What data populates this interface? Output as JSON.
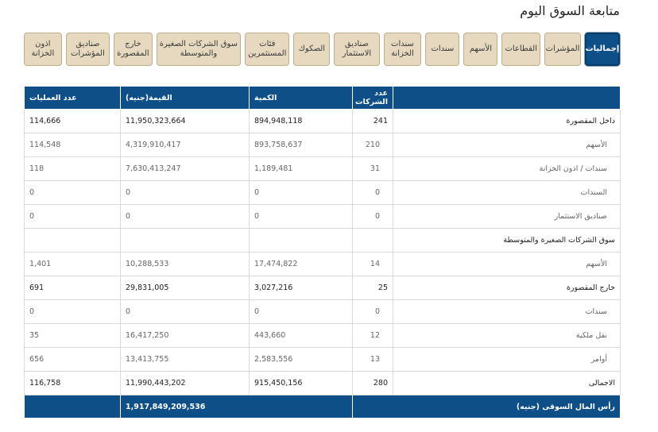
{
  "page_title": "متابعة السوق اليوم",
  "tabs": [
    {
      "label": "إجماليات",
      "active": true
    },
    {
      "label": "المؤشرات"
    },
    {
      "label": "القطاعات"
    },
    {
      "label": "الأسهم"
    },
    {
      "label": "سندات"
    },
    {
      "label": "سندات الخزانة"
    },
    {
      "label": "صناديق الاستثمار"
    },
    {
      "label": "الصكوك"
    },
    {
      "label": "فئات المستثمرين"
    },
    {
      "label": "سوق الشركات الصغيرة والمتوسطة"
    },
    {
      "label": "خارج المقصورة"
    },
    {
      "label": "صناديق المؤشرات"
    },
    {
      "label": "اذون الخزانة"
    }
  ],
  "table": {
    "headers": {
      "name": "",
      "companies": "عدد الشركات",
      "quantity": "الكمية",
      "value": "القيمة(جنيه)",
      "trades": "عدد العمليات"
    },
    "rows": [
      {
        "name": "داخل المقصورة",
        "companies": "241",
        "quantity": "894,948,118",
        "value": "11,950,323,664",
        "trades": "114,666"
      },
      {
        "name": "الأسهم",
        "companies": "210",
        "quantity": "893,758,637",
        "value": "4,319,910,417",
        "trades": "114,548"
      },
      {
        "name": "سندات / اذون الخزانة",
        "companies": "31",
        "quantity": "1,189,481",
        "value": "7,630,413,247",
        "trades": "118"
      },
      {
        "name": "السندات",
        "companies": "0",
        "quantity": "0",
        "value": "0",
        "trades": "0"
      },
      {
        "name": "صناديق الاستثمار",
        "companies": "0",
        "quantity": "0",
        "value": "0",
        "trades": "0"
      },
      {
        "name": "سوق الشركات الصغيرة والمتوسطة",
        "companies": "",
        "quantity": "",
        "value": "",
        "trades": ""
      },
      {
        "name": "الأسهم",
        "companies": "14",
        "quantity": "17,474,822",
        "value": "10,288,533",
        "trades": "1,401"
      },
      {
        "name": "خارج المقصورة",
        "companies": "25",
        "quantity": "3,027,216",
        "value": "29,831,005",
        "trades": "691"
      },
      {
        "name": "سندات",
        "companies": "0",
        "quantity": "0",
        "value": "0",
        "trades": "0"
      },
      {
        "name": "نقل ملكية",
        "companies": "12",
        "quantity": "443,660",
        "value": "16,417,250",
        "trades": "35"
      },
      {
        "name": "أوامر",
        "companies": "13",
        "quantity": "2,583,556",
        "value": "13,413,755",
        "trades": "656"
      },
      {
        "name": "الاجمالى",
        "companies": "280",
        "quantity": "915,450,156",
        "value": "11,990,443,202",
        "trades": "116,758"
      }
    ],
    "market_cap": {
      "label": "رأس المال السوقى (جنيه)",
      "value": "1,917,849,209,536"
    }
  }
}
